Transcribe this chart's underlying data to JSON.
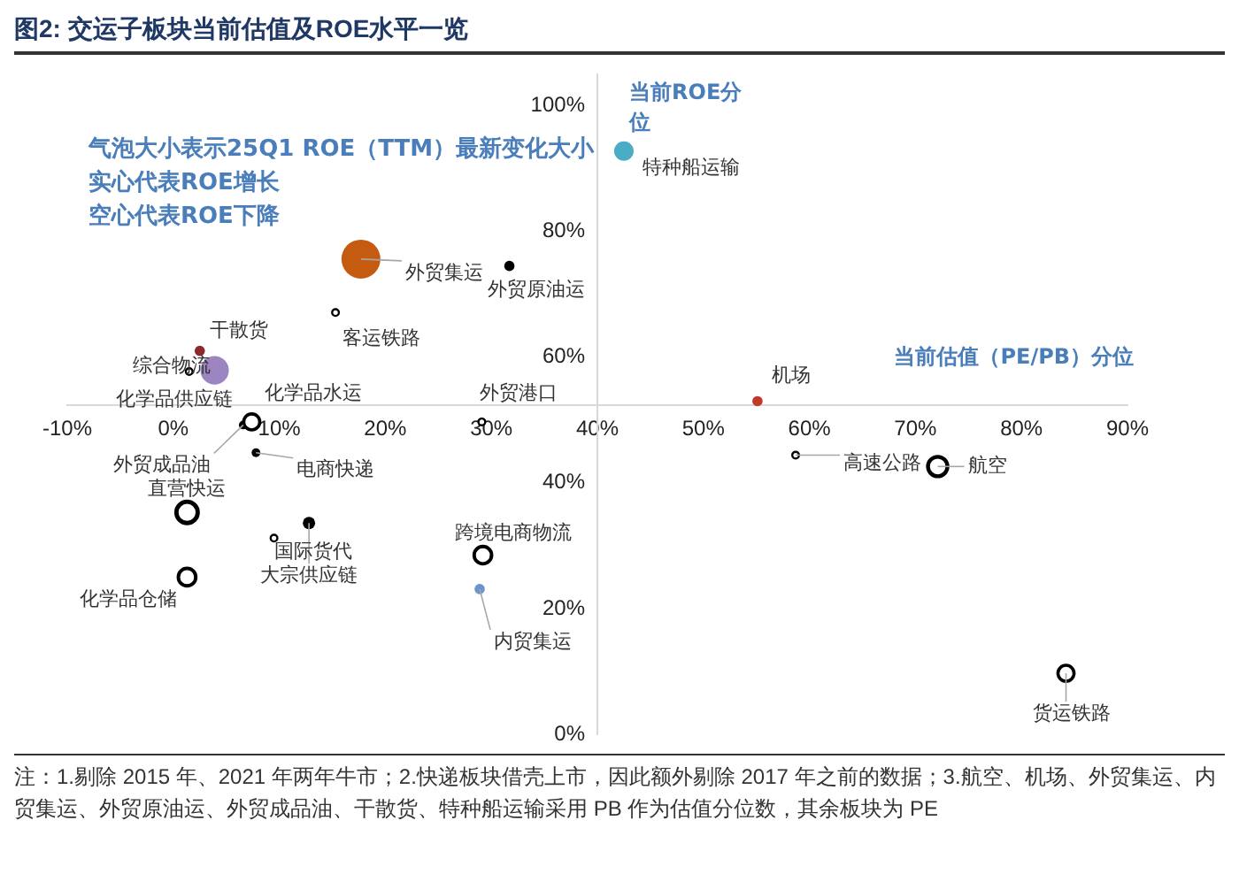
{
  "chart_data": {
    "type": "bubble",
    "title": "图2:  交运子板块当前估值及ROE水平一览",
    "xlabel": "当前估值（PE/PB）分位",
    "ylabel": "当前ROE分位",
    "annotations": [
      "气泡大小表示25Q1 ROE（TTM）最新变化大小",
      "实心代表ROE增长",
      "空心代表ROE下降",
      "注：1.剔除 2015 年、2021 年两年牛市；2.快递板块借壳上市，因此额外剔除 2017 年之前的数据；3.航空、机场、外贸集运、内贸集运、外贸原油运、外贸成品油、干散货、特种船运输采用 PB 作为估值分位数，其余板块为 PE",
      {
        "text": "特种船运输",
        "x": 42.5,
        "y": 92.8
      },
      {
        "text": "外贸集运",
        "x": 17.7,
        "y": 75.6
      },
      {
        "text": "外贸原油运",
        "x": 31.7,
        "y": 74.5
      },
      {
        "text": "干散货",
        "x": 2.5,
        "y": 61.0
      },
      {
        "text": "化学品供应链",
        "x": 3.9,
        "y": 57.9
      },
      {
        "text": "机场",
        "x": 55.1,
        "y": 53.0
      },
      {
        "text": "外贸成品油",
        "x": 6.6,
        "y": 49.2
      },
      {
        "text": "电商快递",
        "x": 7.8,
        "y": 44.8
      },
      {
        "text": "大宗供应链",
        "x": 12.8,
        "y": 33.6
      },
      {
        "text": "内贸集运",
        "x": 28.9,
        "y": 23.1
      },
      {
        "text": "客运铁路",
        "x": 15.3,
        "y": 67.1
      },
      {
        "text": "综合物流",
        "x": 1.5,
        "y": 57.7
      },
      {
        "text": "化学品水运",
        "x": 7.4,
        "y": 49.7
      },
      {
        "text": "外贸港口",
        "x": 29.1,
        "y": 49.7
      },
      {
        "text": "直营快运",
        "x": 1.3,
        "y": 35.3
      },
      {
        "text": "化学品仓储",
        "x": 1.3,
        "y": 25.0
      },
      {
        "text": "国际货代",
        "x": 9.5,
        "y": 31.2
      },
      {
        "text": "跨境电商物流",
        "x": 29.2,
        "y": 28.5
      },
      {
        "text": "高速公路",
        "x": 58.7,
        "y": 44.4
      },
      {
        "text": "航空",
        "x": 72.1,
        "y": 42.6
      },
      {
        "text": "货运铁路",
        "x": 84.2,
        "y": 9.7
      }
    ],
    "xlim": [
      -10,
      90
    ],
    "ylim": [
      0,
      105
    ],
    "xticks": [
      {
        "value": -10,
        "label": "-10%"
      },
      {
        "value": 0,
        "label": "0%"
      },
      {
        "value": 10,
        "label": "10%"
      },
      {
        "value": 20,
        "label": "20%"
      },
      {
        "value": 30,
        "label": "30%"
      },
      {
        "value": 40,
        "label": "40%"
      },
      {
        "value": 50,
        "label": "50%"
      },
      {
        "value": 60,
        "label": "60%"
      },
      {
        "value": 70,
        "label": "70%"
      },
      {
        "value": 80,
        "label": "80%"
      },
      {
        "value": 90,
        "label": "90%"
      }
    ],
    "yticks": [
      {
        "value": 0,
        "label": "0%"
      },
      {
        "value": 20,
        "label": "20%"
      },
      {
        "value": 40,
        "label": "40%"
      },
      {
        "value": 60,
        "label": "60%"
      },
      {
        "value": 80,
        "label": "80%"
      },
      {
        "value": 100,
        "label": "100%"
      }
    ],
    "grid": false,
    "legend": false,
    "series": [
      {
        "x": [
          42.5,
          17.7,
          31.7,
          2.5,
          3.9,
          55.1,
          6.6,
          7.8,
          12.8,
          28.9
        ],
        "values": [
          92.8,
          75.6,
          74.5,
          61.0,
          57.9,
          53.0,
          49.2,
          44.8,
          33.6,
          23.1
        ],
        "sizes": [
          0.25,
          1,
          0.07,
          0.07,
          0.53,
          0.07,
          0.05,
          0.05,
          0.1,
          0.07
        ],
        "colors": [
          "#4bacc6",
          "#c55a11",
          "#000000",
          "#8b2a2a",
          "#9c85c0",
          "#c0392b",
          "#000000",
          "#000000",
          "#000000",
          "#6d93cc"
        ]
      },
      {
        "color": "#000000",
        "x": [
          15.3,
          1.5,
          7.4,
          29.1,
          1.3,
          1.3,
          9.5,
          29.2,
          58.7,
          72.1,
          84.2
        ],
        "values": [
          67.1,
          57.7,
          49.7,
          49.7,
          35.3,
          25.0,
          31.2,
          28.5,
          44.4,
          42.6,
          9.7
        ],
        "sizes": [
          0.03,
          0.03,
          0.17,
          0.03,
          0.3,
          0.2,
          0.03,
          0.2,
          0.03,
          0.25,
          0.17
        ]
      }
    ]
  }
}
